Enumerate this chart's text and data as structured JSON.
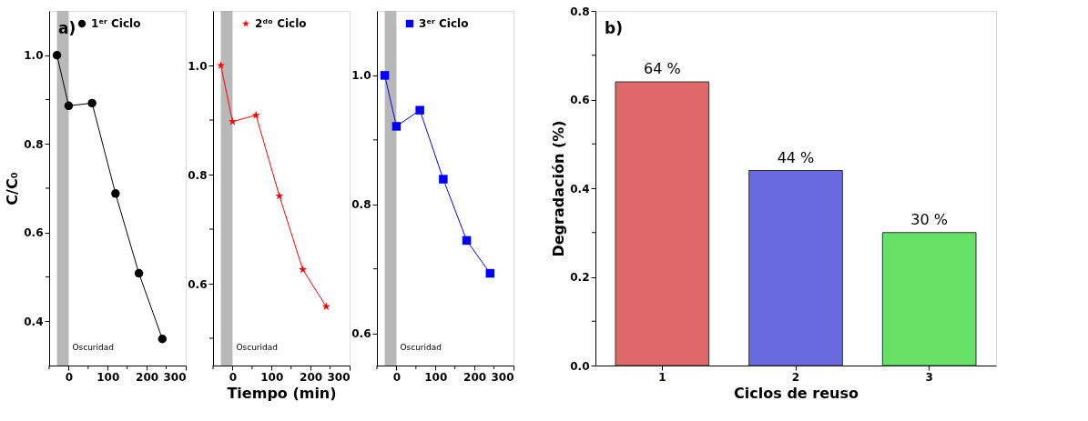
{
  "chart_data": [
    {
      "type": "line",
      "ylabel": "C/C₀",
      "annotations": [
        "a)"
      ],
      "marker": "circle",
      "legend": "top",
      "xlim": [
        -50,
        300
      ],
      "ylim": [
        0.3,
        1.1
      ],
      "xticks": [
        {
          "value": -50,
          "label": null
        },
        0,
        {
          "value": 50,
          "label": null
        },
        100,
        {
          "value": 150,
          "label": null
        },
        200,
        {
          "value": 250,
          "label": null
        },
        300
      ],
      "yticks": [
        0.4,
        {
          "value": 0.5,
          "label": null
        },
        0.6,
        {
          "value": 0.7,
          "label": null
        },
        0.8,
        {
          "value": 0.9,
          "label": null
        },
        {
          "value": 1,
          "label": "1.0"
        }
      ],
      "x": [
        -30,
        0,
        60,
        120,
        180,
        240
      ],
      "series": [
        {
          "name": "1ᵉʳ Ciclo",
          "color": "#000000",
          "values": [
            1.0,
            0.886,
            0.892,
            0.688,
            0.508,
            0.36
          ]
        }
      ],
      "bands": [
        {
          "axis": "x",
          "from": -30,
          "to": 0,
          "label": "Oscuridad",
          "color": "#a6a6a6"
        }
      ]
    },
    {
      "type": "line",
      "xlabel": "Tiempo (min)",
      "marker": "star",
      "legend": "top",
      "xlim": [
        -50,
        300
      ],
      "ylim": [
        0.45,
        1.1
      ],
      "xticks": [
        {
          "value": -50,
          "label": null
        },
        0,
        {
          "value": 50,
          "label": null
        },
        100,
        {
          "value": 150,
          "label": null
        },
        200,
        {
          "value": 250,
          "label": null
        },
        300
      ],
      "yticks": [
        {
          "value": 0.5,
          "label": null
        },
        0.6,
        {
          "value": 0.7,
          "label": null
        },
        0.8,
        {
          "value": 0.9,
          "label": null
        },
        {
          "value": 1,
          "label": "1.0"
        }
      ],
      "x": [
        -30,
        0,
        60,
        120,
        180,
        240
      ],
      "series": [
        {
          "name": "2ᵈᵒ Ciclo",
          "color": "#ff0000",
          "values": [
            1.0,
            0.897,
            0.909,
            0.761,
            0.626,
            0.558
          ]
        }
      ],
      "bands": [
        {
          "axis": "x",
          "from": -30,
          "to": 0,
          "label": "Oscuridad",
          "color": "#a6a6a6"
        }
      ]
    },
    {
      "type": "line",
      "marker": "square",
      "legend": "top",
      "xlim": [
        -50,
        300
      ],
      "ylim": [
        0.55,
        1.1
      ],
      "xticks": [
        {
          "value": -50,
          "label": null
        },
        0,
        {
          "value": 50,
          "label": null
        },
        100,
        {
          "value": 150,
          "label": null
        },
        200,
        {
          "value": 250,
          "label": null
        },
        300
      ],
      "yticks": [
        0.6,
        {
          "value": 0.7,
          "label": null
        },
        0.8,
        {
          "value": 0.9,
          "label": null
        },
        {
          "value": 1,
          "label": "1.0"
        }
      ],
      "x": [
        -30,
        0,
        60,
        120,
        180,
        240
      ],
      "series": [
        {
          "name": "3ᵉʳ Ciclo",
          "color": "#0000ff",
          "values": [
            1.0,
            0.921,
            0.946,
            0.839,
            0.744,
            0.693
          ]
        }
      ],
      "bands": [
        {
          "axis": "x",
          "from": -30,
          "to": 0,
          "label": "Oscuridad",
          "color": "#a6a6a6"
        }
      ]
    },
    {
      "type": "bar",
      "xlabel": "Ciclos de reuso",
      "ylabel": "Degradación (%)",
      "annotations": [
        "b)"
      ],
      "categories": [
        "1",
        "2",
        "3"
      ],
      "values": [
        0.64,
        0.44,
        0.3
      ],
      "colors": [
        "#e06868",
        "#6a6ae0",
        "#66e066"
      ],
      "value_labels": [
        "64 %",
        "44 %",
        "30 %"
      ],
      "ylim": [
        0,
        0.8
      ],
      "yticks": [
        {
          "value": 0,
          "label": "0.0"
        },
        {
          "value": 0.1,
          "label": null
        },
        0.2,
        {
          "value": 0.3,
          "label": null
        },
        0.4,
        {
          "value": 0.5,
          "label": null
        },
        0.6,
        {
          "value": 0.7,
          "label": null
        },
        0.8
      ]
    }
  ]
}
